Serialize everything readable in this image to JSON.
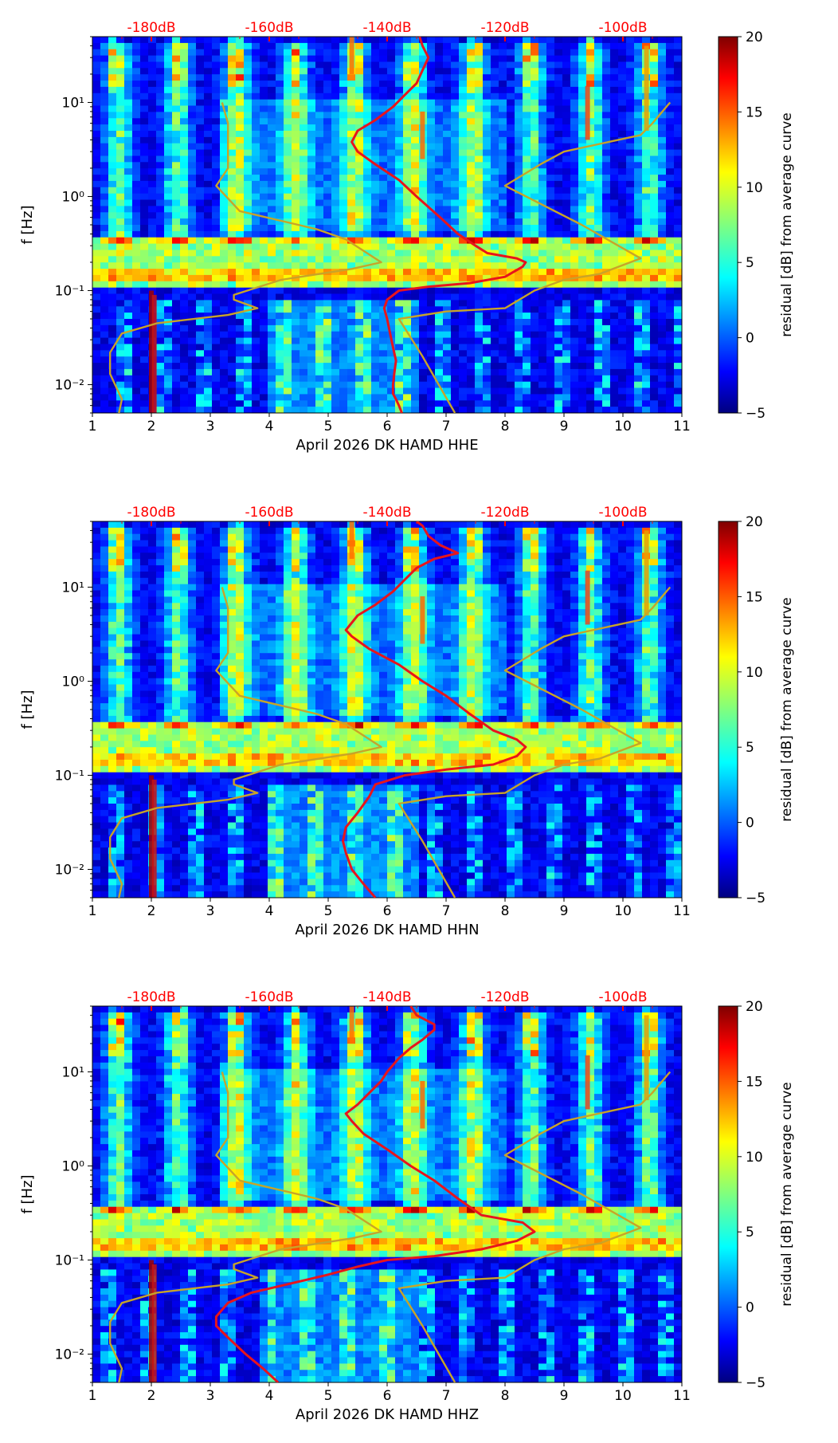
{
  "colors": {
    "db_ticks": "#ff0000",
    "median_curve": "#e8141c",
    "noise_model": "#c8a428",
    "axis": "#000000"
  },
  "colormap": "jet",
  "chart_data": [
    {
      "type": "heatmap",
      "channel": "HHE",
      "xlabel": "April 2026 DK HAMD  HHE",
      "ylabel": "f [Hz]",
      "xlim": [
        1,
        11
      ],
      "xticks": [
        "1",
        "2",
        "3",
        "4",
        "5",
        "6",
        "7",
        "8",
        "9",
        "10",
        "11"
      ],
      "yscale": "log",
      "ylim": [
        0.005,
        50
      ],
      "yticks": [
        {
          "value": 0.01,
          "label": "10⁻²"
        },
        {
          "value": 0.1,
          "label": "10⁻¹"
        },
        {
          "value": 1,
          "label": "10⁰"
        },
        {
          "value": 10,
          "label": "10¹"
        }
      ],
      "db_scale": {
        "labels": [
          "-180dB",
          "-160dB",
          "-140dB",
          "-120dB",
          "-100dB"
        ],
        "positions": [
          2,
          4,
          6,
          8,
          10
        ]
      },
      "colorbar": {
        "label": "residual [dB] from average curve",
        "range": [
          -5,
          20
        ],
        "ticks": [
          "20",
          "15",
          "10",
          "5",
          "0",
          "−5"
        ]
      },
      "series": [
        {
          "name": "median residual curve",
          "color": "#e8141c",
          "points": [
            [
              6.25,
              0.005
            ],
            [
              6.2,
              0.006
            ],
            [
              6.15,
              0.007
            ],
            [
              6.1,
              0.008
            ],
            [
              6.1,
              0.01
            ],
            [
              6.12,
              0.013
            ],
            [
              6.15,
              0.018
            ],
            [
              6.1,
              0.025
            ],
            [
              6.05,
              0.035
            ],
            [
              6.0,
              0.05
            ],
            [
              5.95,
              0.065
            ],
            [
              6.0,
              0.08
            ],
            [
              6.2,
              0.1
            ],
            [
              6.7,
              0.11
            ],
            [
              7.4,
              0.12
            ],
            [
              8.0,
              0.14
            ],
            [
              8.3,
              0.18
            ],
            [
              8.35,
              0.2
            ],
            [
              8.2,
              0.22
            ],
            [
              7.7,
              0.25
            ],
            [
              7.5,
              0.3
            ],
            [
              7.2,
              0.4
            ],
            [
              6.9,
              0.6
            ],
            [
              6.5,
              1.0
            ],
            [
              6.2,
              1.5
            ],
            [
              5.8,
              2.2
            ],
            [
              5.5,
              3.0
            ],
            [
              5.4,
              3.8
            ],
            [
              5.5,
              5.0
            ],
            [
              5.8,
              6.5
            ],
            [
              6.1,
              9.0
            ],
            [
              6.3,
              12
            ],
            [
              6.5,
              16
            ],
            [
              6.6,
              22
            ],
            [
              6.7,
              30
            ],
            [
              6.6,
              40
            ],
            [
              6.55,
              50
            ]
          ]
        },
        {
          "name": "noise model",
          "color": "#c8a428",
          "points": [
            [
              1.45,
              0.005
            ],
            [
              1.5,
              0.007
            ],
            [
              1.3,
              0.013
            ],
            [
              1.3,
              0.022
            ],
            [
              1.5,
              0.035
            ],
            [
              2.1,
              0.045
            ],
            [
              3.3,
              0.055
            ],
            [
              3.8,
              0.065
            ],
            [
              3.4,
              0.08
            ],
            [
              3.4,
              0.09
            ],
            [
              4.2,
              0.13
            ],
            [
              5.4,
              0.17
            ],
            [
              5.9,
              0.2
            ],
            [
              5.3,
              0.35
            ],
            [
              4.8,
              0.45
            ],
            [
              3.5,
              0.7
            ],
            [
              3.1,
              1.3
            ],
            [
              3.3,
              2.0
            ],
            [
              3.3,
              3.0
            ],
            [
              3.3,
              6.0
            ],
            [
              3.2,
              10.0
            ]
          ]
        },
        {
          "name": "noise model",
          "color": "#c8a428",
          "points": [
            [
              7.15,
              0.005
            ],
            [
              6.6,
              0.02
            ],
            [
              6.2,
              0.05
            ],
            [
              7.0,
              0.06
            ],
            [
              8.0,
              0.065
            ],
            [
              8.5,
              0.1
            ],
            [
              9.0,
              0.13
            ],
            [
              9.6,
              0.15
            ],
            [
              10.3,
              0.22
            ],
            [
              9.3,
              0.5
            ],
            [
              8.0,
              1.3
            ],
            [
              8.6,
              2.2
            ],
            [
              9.0,
              3.0
            ],
            [
              10.3,
              4.5
            ],
            [
              10.5,
              6.0
            ],
            [
              10.8,
              10.0
            ]
          ]
        }
      ]
    },
    {
      "type": "heatmap",
      "channel": "HHN",
      "xlabel": "April 2026 DK HAMD  HHN",
      "ylabel": "f [Hz]",
      "xlim": [
        1,
        11
      ],
      "xticks": [
        "1",
        "2",
        "3",
        "4",
        "5",
        "6",
        "7",
        "8",
        "9",
        "10",
        "11"
      ],
      "yscale": "log",
      "ylim": [
        0.005,
        50
      ],
      "yticks": [
        {
          "value": 0.01,
          "label": "10⁻²"
        },
        {
          "value": 0.1,
          "label": "10⁻¹"
        },
        {
          "value": 1,
          "label": "10⁰"
        },
        {
          "value": 10,
          "label": "10¹"
        }
      ],
      "db_scale": {
        "labels": [
          "-180dB",
          "-160dB",
          "-140dB",
          "-120dB",
          "-100dB"
        ],
        "positions": [
          2,
          4,
          6,
          8,
          10
        ]
      },
      "colorbar": {
        "label": "residual [dB] from average curve",
        "range": [
          -5,
          20
        ],
        "ticks": [
          "20",
          "15",
          "10",
          "5",
          "0",
          "−5"
        ]
      },
      "series": [
        {
          "name": "median residual curve",
          "color": "#e8141c",
          "points": [
            [
              5.8,
              0.005
            ],
            [
              5.6,
              0.007
            ],
            [
              5.4,
              0.01
            ],
            [
              5.3,
              0.015
            ],
            [
              5.25,
              0.02
            ],
            [
              5.3,
              0.028
            ],
            [
              5.5,
              0.04
            ],
            [
              5.7,
              0.06
            ],
            [
              5.8,
              0.08
            ],
            [
              6.3,
              0.1
            ],
            [
              7.0,
              0.115
            ],
            [
              7.8,
              0.13
            ],
            [
              8.2,
              0.16
            ],
            [
              8.35,
              0.2
            ],
            [
              8.2,
              0.24
            ],
            [
              7.8,
              0.3
            ],
            [
              7.4,
              0.45
            ],
            [
              7.0,
              0.7
            ],
            [
              6.6,
              1.0
            ],
            [
              6.2,
              1.5
            ],
            [
              5.7,
              2.2
            ],
            [
              5.4,
              3.0
            ],
            [
              5.3,
              3.5
            ],
            [
              5.5,
              5.0
            ],
            [
              5.8,
              6.5
            ],
            [
              6.1,
              9
            ],
            [
              6.3,
              12
            ],
            [
              6.5,
              16
            ],
            [
              6.8,
              20
            ],
            [
              7.2,
              23
            ],
            [
              6.9,
              28
            ],
            [
              6.7,
              35
            ],
            [
              6.6,
              45
            ],
            [
              6.5,
              50
            ]
          ]
        },
        {
          "name": "noise model",
          "color": "#c8a428",
          "points": [
            [
              1.45,
              0.005
            ],
            [
              1.5,
              0.007
            ],
            [
              1.3,
              0.013
            ],
            [
              1.3,
              0.022
            ],
            [
              1.5,
              0.035
            ],
            [
              2.1,
              0.045
            ],
            [
              3.3,
              0.055
            ],
            [
              3.8,
              0.065
            ],
            [
              3.4,
              0.08
            ],
            [
              3.4,
              0.09
            ],
            [
              4.2,
              0.13
            ],
            [
              5.4,
              0.17
            ],
            [
              5.9,
              0.2
            ],
            [
              5.3,
              0.35
            ],
            [
              4.8,
              0.45
            ],
            [
              3.5,
              0.7
            ],
            [
              3.1,
              1.3
            ],
            [
              3.3,
              2.0
            ],
            [
              3.3,
              3.0
            ],
            [
              3.3,
              6.0
            ],
            [
              3.2,
              10.0
            ]
          ]
        },
        {
          "name": "noise model",
          "color": "#c8a428",
          "points": [
            [
              7.15,
              0.005
            ],
            [
              6.6,
              0.02
            ],
            [
              6.2,
              0.05
            ],
            [
              7.0,
              0.06
            ],
            [
              8.0,
              0.065
            ],
            [
              8.5,
              0.1
            ],
            [
              9.0,
              0.13
            ],
            [
              9.6,
              0.15
            ],
            [
              10.3,
              0.22
            ],
            [
              9.3,
              0.5
            ],
            [
              8.0,
              1.3
            ],
            [
              8.6,
              2.2
            ],
            [
              9.0,
              3.0
            ],
            [
              10.3,
              4.5
            ],
            [
              10.5,
              6.0
            ],
            [
              10.8,
              10.0
            ]
          ]
        }
      ]
    },
    {
      "type": "heatmap",
      "channel": "HHZ",
      "xlabel": "April 2026 DK HAMD  HHZ",
      "ylabel": "f [Hz]",
      "xlim": [
        1,
        11
      ],
      "xticks": [
        "1",
        "2",
        "3",
        "4",
        "5",
        "6",
        "7",
        "8",
        "9",
        "10",
        "11"
      ],
      "yscale": "log",
      "ylim": [
        0.005,
        50
      ],
      "yticks": [
        {
          "value": 0.01,
          "label": "10⁻²"
        },
        {
          "value": 0.1,
          "label": "10⁻¹"
        },
        {
          "value": 1,
          "label": "10⁰"
        },
        {
          "value": 10,
          "label": "10¹"
        }
      ],
      "db_scale": {
        "labels": [
          "-180dB",
          "-160dB",
          "-140dB",
          "-120dB",
          "-100dB"
        ],
        "positions": [
          2,
          4,
          6,
          8,
          10
        ]
      },
      "colorbar": {
        "label": "residual [dB] from average curve",
        "range": [
          -5,
          20
        ],
        "ticks": [
          "20",
          "15",
          "10",
          "5",
          "0",
          "−5"
        ]
      },
      "series": [
        {
          "name": "median residual curve",
          "color": "#e8141c",
          "points": [
            [
              4.15,
              0.005
            ],
            [
              3.9,
              0.007
            ],
            [
              3.6,
              0.01
            ],
            [
              3.3,
              0.015
            ],
            [
              3.1,
              0.02
            ],
            [
              3.1,
              0.025
            ],
            [
              3.3,
              0.035
            ],
            [
              3.7,
              0.045
            ],
            [
              4.3,
              0.055
            ],
            [
              5.0,
              0.07
            ],
            [
              5.5,
              0.085
            ],
            [
              6.0,
              0.1
            ],
            [
              6.8,
              0.11
            ],
            [
              7.6,
              0.13
            ],
            [
              8.2,
              0.16
            ],
            [
              8.5,
              0.2
            ],
            [
              8.3,
              0.25
            ],
            [
              7.6,
              0.3
            ],
            [
              7.2,
              0.45
            ],
            [
              6.8,
              0.7
            ],
            [
              6.4,
              1.0
            ],
            [
              6.0,
              1.5
            ],
            [
              5.6,
              2.2
            ],
            [
              5.4,
              3.0
            ],
            [
              5.3,
              3.6
            ],
            [
              5.5,
              4.5
            ],
            [
              5.7,
              6.0
            ],
            [
              5.9,
              8.0
            ],
            [
              6.0,
              10
            ],
            [
              6.2,
              14
            ],
            [
              6.4,
              18
            ],
            [
              6.6,
              22
            ],
            [
              6.8,
              28
            ],
            [
              6.8,
              32
            ],
            [
              6.5,
              40
            ],
            [
              6.4,
              50
            ]
          ]
        },
        {
          "name": "noise model",
          "color": "#c8a428",
          "points": [
            [
              1.45,
              0.005
            ],
            [
              1.5,
              0.007
            ],
            [
              1.3,
              0.013
            ],
            [
              1.3,
              0.022
            ],
            [
              1.5,
              0.035
            ],
            [
              2.1,
              0.045
            ],
            [
              3.3,
              0.055
            ],
            [
              3.8,
              0.065
            ],
            [
              3.4,
              0.08
            ],
            [
              3.4,
              0.09
            ],
            [
              4.2,
              0.13
            ],
            [
              5.4,
              0.17
            ],
            [
              5.9,
              0.2
            ],
            [
              5.3,
              0.35
            ],
            [
              4.8,
              0.45
            ],
            [
              3.5,
              0.7
            ],
            [
              3.1,
              1.3
            ],
            [
              3.3,
              2.0
            ],
            [
              3.3,
              3.0
            ],
            [
              3.3,
              6.0
            ],
            [
              3.2,
              10.0
            ]
          ]
        },
        {
          "name": "noise model",
          "color": "#c8a428",
          "points": [
            [
              7.15,
              0.005
            ],
            [
              6.6,
              0.02
            ],
            [
              6.2,
              0.05
            ],
            [
              7.0,
              0.06
            ],
            [
              8.0,
              0.065
            ],
            [
              8.5,
              0.1
            ],
            [
              9.0,
              0.13
            ],
            [
              9.6,
              0.15
            ],
            [
              10.3,
              0.22
            ],
            [
              9.3,
              0.5
            ],
            [
              8.0,
              1.3
            ],
            [
              8.6,
              2.2
            ],
            [
              9.0,
              3.0
            ],
            [
              10.3,
              4.5
            ],
            [
              10.5,
              6.0
            ],
            [
              10.8,
              10.0
            ]
          ]
        }
      ]
    }
  ]
}
